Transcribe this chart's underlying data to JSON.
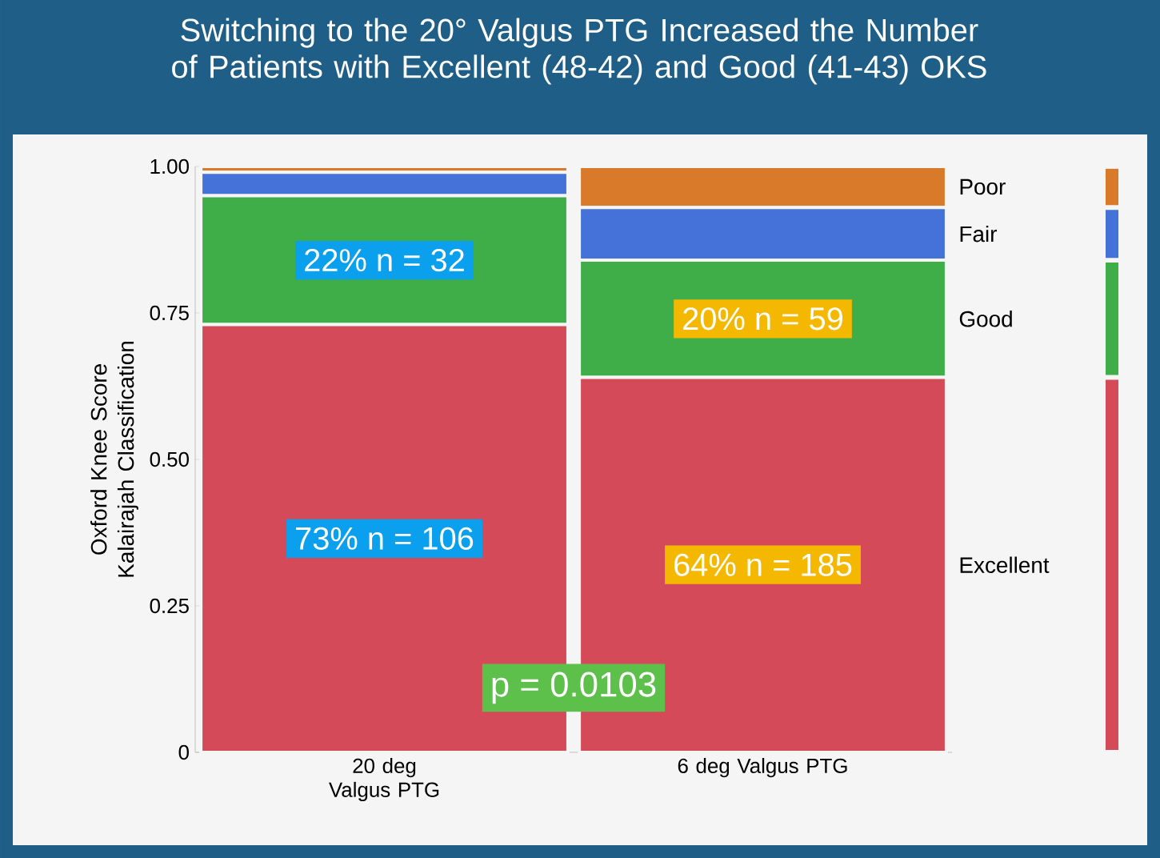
{
  "chart_data": {
    "type": "bar",
    "stacked": true,
    "title": "Switching to the 20° Valgus PTG Increased the Number of Patients with Excellent (48-42) and Good (41-43) OKS",
    "ylabel": "Oxford Knee Score Kalairajah Classification",
    "categories": [
      "20 deg Valgus PTG",
      "6 deg Valgus PTG"
    ],
    "series": [
      {
        "name": "Excellent",
        "color": "#d44a58",
        "values": [
          0.73,
          0.64
        ],
        "value_labels": [
          "73% n = 106",
          "64% n = 185"
        ]
      },
      {
        "name": "Good",
        "color": "#3fae49",
        "values": [
          0.22,
          0.2
        ],
        "value_labels": [
          "22% n = 32",
          "20% n = 59"
        ]
      },
      {
        "name": "Fair",
        "color": "#4472d8",
        "values": [
          0.04,
          0.09
        ]
      },
      {
        "name": "Poor",
        "color": "#d87a2a",
        "values": [
          0.01,
          0.07
        ]
      }
    ],
    "ylim": [
      0,
      1
    ],
    "yticks": [
      0,
      {
        "value": 0.25,
        "label": "0.25"
      },
      {
        "value": 0.5,
        "label": "0.50"
      },
      {
        "value": 0.75,
        "label": "0.75"
      },
      {
        "value": 1,
        "label": "1.00"
      }
    ],
    "legend": "right",
    "annotations": [
      "p = 0.0103"
    ]
  }
}
